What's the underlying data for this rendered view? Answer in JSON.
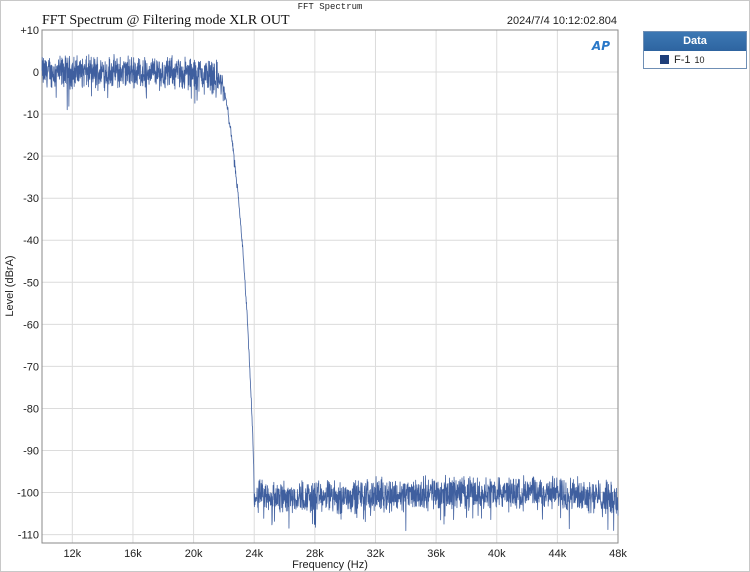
{
  "header": {
    "top_title": "FFT Spectrum",
    "main_title": "FFT Spectrum @ Filtering mode XLR OUT",
    "timestamp": "2024/7/4 10:12:02.804",
    "logo_text": "AP"
  },
  "legend": {
    "header": "Data",
    "entry_label": "F-1",
    "entry_sub": "10",
    "entry_color": "#1f3f7a"
  },
  "chart_data": {
    "type": "line",
    "title": "FFT Spectrum @ Filtering mode XLR OUT",
    "xlabel": "Frequency (Hz)",
    "ylabel": "Level (dBrA)",
    "xlim": [
      10000,
      48000
    ],
    "ylim": [
      -112,
      10
    ],
    "x_ticks": [
      12000,
      16000,
      20000,
      24000,
      28000,
      32000,
      36000,
      40000,
      44000,
      48000
    ],
    "x_tick_labels": [
      "12k",
      "16k",
      "20k",
      "24k",
      "28k",
      "32k",
      "36k",
      "40k",
      "44k",
      "48k"
    ],
    "y_ticks": [
      10,
      0,
      -10,
      -20,
      -30,
      -40,
      -50,
      -60,
      -70,
      -80,
      -90,
      -100,
      -110
    ],
    "y_tick_labels": [
      "+10",
      "0",
      "-10",
      "-20",
      "-30",
      "-40",
      "-50",
      "-60",
      "-70",
      "-80",
      "-90",
      "-100",
      "-110"
    ],
    "grid": true,
    "line_color": "#3f5f9f",
    "series": [
      {
        "name": "F-1",
        "x": [
          10000,
          12000,
          14000,
          16000,
          18000,
          20000,
          21000,
          21500,
          22000,
          22300,
          22600,
          22900,
          23200,
          23500,
          23700,
          23900,
          24000,
          24100,
          26000,
          28000,
          30000,
          32000,
          34000,
          36000,
          38000,
          40000,
          42000,
          44000,
          46000,
          47000,
          48000
        ],
        "y": [
          0,
          0,
          0,
          0,
          0,
          -0.5,
          -0.5,
          -1,
          -4,
          -10,
          -18,
          -28,
          -40,
          -56,
          -70,
          -86,
          -100,
          -101,
          -101,
          -101,
          -101,
          -100.5,
          -100.5,
          -100,
          -100,
          -100,
          -100,
          -100,
          -100.5,
          -101,
          -102
        ],
        "noise_band_db": 6
      }
    ]
  }
}
